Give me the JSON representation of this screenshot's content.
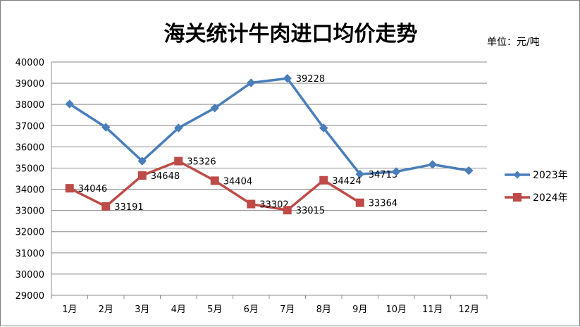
{
  "title": "海关统计牛肉进口均价走势",
  "unit": "单位：元/吨",
  "chart_data": {
    "type": "line",
    "title": "海关统计牛肉进口均价走势",
    "categories": [
      "1月",
      "2月",
      "3月",
      "4月",
      "5月",
      "6月",
      "7月",
      "8月",
      "9月",
      "10月",
      "11月",
      "12月"
    ],
    "ylim": [
      29000,
      40000
    ],
    "ytick_step": 1000,
    "grid": true,
    "legend_position": "right",
    "series": [
      {
        "name": "2023年",
        "color": "#4A7EBB",
        "marker": "diamond",
        "values": [
          38020,
          36920,
          35330,
          36890,
          37830,
          39020,
          39228,
          36890,
          34713,
          34830,
          35170,
          34880
        ],
        "labels": [
          null,
          null,
          null,
          null,
          null,
          null,
          "39228",
          null,
          "34713",
          null,
          null,
          null
        ]
      },
      {
        "name": "2024年",
        "color": "#BE4B48",
        "marker": "square",
        "values": [
          34046,
          33191,
          34648,
          35326,
          34404,
          33302,
          33015,
          34424,
          33364,
          null,
          null,
          null
        ],
        "labels": [
          "34046",
          "33191",
          "34648",
          "35326",
          "34404",
          "33302",
          "33015",
          "34424",
          "33364",
          null,
          null,
          null
        ]
      }
    ]
  }
}
